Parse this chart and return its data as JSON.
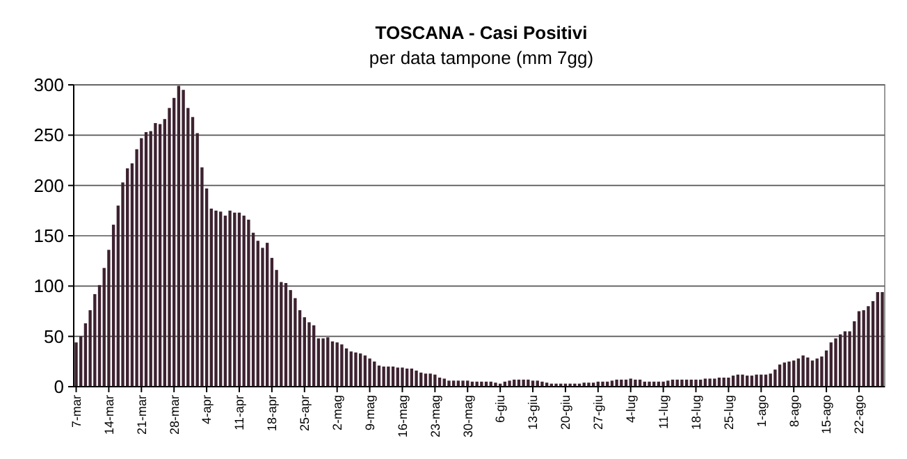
{
  "chart_data": {
    "type": "bar",
    "title": "TOSCANA - Casi Positivi",
    "subtitle": "per data tampone (mm 7gg)",
    "categories": [
      "7-mar",
      null,
      null,
      null,
      null,
      null,
      null,
      "14-mar",
      null,
      null,
      null,
      null,
      null,
      null,
      "21-mar",
      null,
      null,
      null,
      null,
      null,
      null,
      "28-mar",
      null,
      null,
      null,
      null,
      null,
      null,
      "4-apr",
      null,
      null,
      null,
      null,
      null,
      null,
      "11-apr",
      null,
      null,
      null,
      null,
      null,
      null,
      "18-apr",
      null,
      null,
      null,
      null,
      null,
      null,
      "25-apr",
      null,
      null,
      null,
      null,
      null,
      null,
      "2-mag",
      null,
      null,
      null,
      null,
      null,
      null,
      "9-mag",
      null,
      null,
      null,
      null,
      null,
      null,
      "16-mag",
      null,
      null,
      null,
      null,
      null,
      null,
      "23-mag",
      null,
      null,
      null,
      null,
      null,
      null,
      "30-mag",
      null,
      null,
      null,
      null,
      null,
      null,
      "6-giu",
      null,
      null,
      null,
      null,
      null,
      null,
      "13-giu",
      null,
      null,
      null,
      null,
      null,
      null,
      "20-giu",
      null,
      null,
      null,
      null,
      null,
      null,
      "27-giu",
      null,
      null,
      null,
      null,
      null,
      null,
      "4-lug",
      null,
      null,
      null,
      null,
      null,
      null,
      "11-lug",
      null,
      null,
      null,
      null,
      null,
      null,
      "18-lug",
      null,
      null,
      null,
      null,
      null,
      null,
      "25-lug",
      null,
      null,
      null,
      null,
      null,
      null,
      "1-ago",
      null,
      null,
      null,
      null,
      null,
      null,
      "8-ago",
      null,
      null,
      null,
      null,
      null,
      null,
      "15-ago",
      null,
      null,
      null,
      null,
      null,
      null,
      "22-ago",
      null,
      null,
      null,
      null,
      null
    ],
    "values": [
      44,
      50,
      63,
      76,
      92,
      101,
      118,
      136,
      161,
      180,
      203,
      217,
      222,
      236,
      247,
      253,
      254,
      262,
      261,
      266,
      277,
      287,
      299,
      295,
      277,
      268,
      252,
      218,
      197,
      177,
      175,
      174,
      170,
      175,
      173,
      173,
      170,
      166,
      153,
      145,
      138,
      143,
      128,
      116,
      104,
      103,
      96,
      88,
      76,
      69,
      64,
      61,
      48,
      48,
      49,
      45,
      44,
      42,
      38,
      35,
      34,
      33,
      31,
      28,
      25,
      21,
      20,
      20,
      20,
      19,
      19,
      18,
      18,
      16,
      14,
      13,
      13,
      12,
      9,
      8,
      6,
      6,
      6,
      6,
      6,
      5,
      5,
      5,
      5,
      5,
      4,
      3,
      5,
      6,
      7,
      7,
      7,
      7,
      6,
      6,
      5,
      4,
      3,
      3,
      3,
      3,
      3,
      3,
      3,
      4,
      4,
      4,
      5,
      5,
      5,
      6,
      7,
      7,
      7,
      8,
      7,
      7,
      5,
      5,
      5,
      5,
      5,
      6,
      7,
      7,
      7,
      7,
      7,
      7,
      7,
      8,
      8,
      8,
      9,
      9,
      9,
      11,
      12,
      12,
      11,
      11,
      12,
      12,
      12,
      13,
      17,
      22,
      24,
      25,
      26,
      28,
      31,
      29,
      26,
      28,
      30,
      36,
      44,
      48,
      52,
      55,
      55,
      65,
      75,
      76,
      80,
      85,
      94,
      94
    ],
    "color": "#3d2230",
    "ylim": [
      0,
      300
    ],
    "yticks": [
      0,
      50,
      100,
      150,
      200,
      250,
      300
    ],
    "grid": "y"
  }
}
